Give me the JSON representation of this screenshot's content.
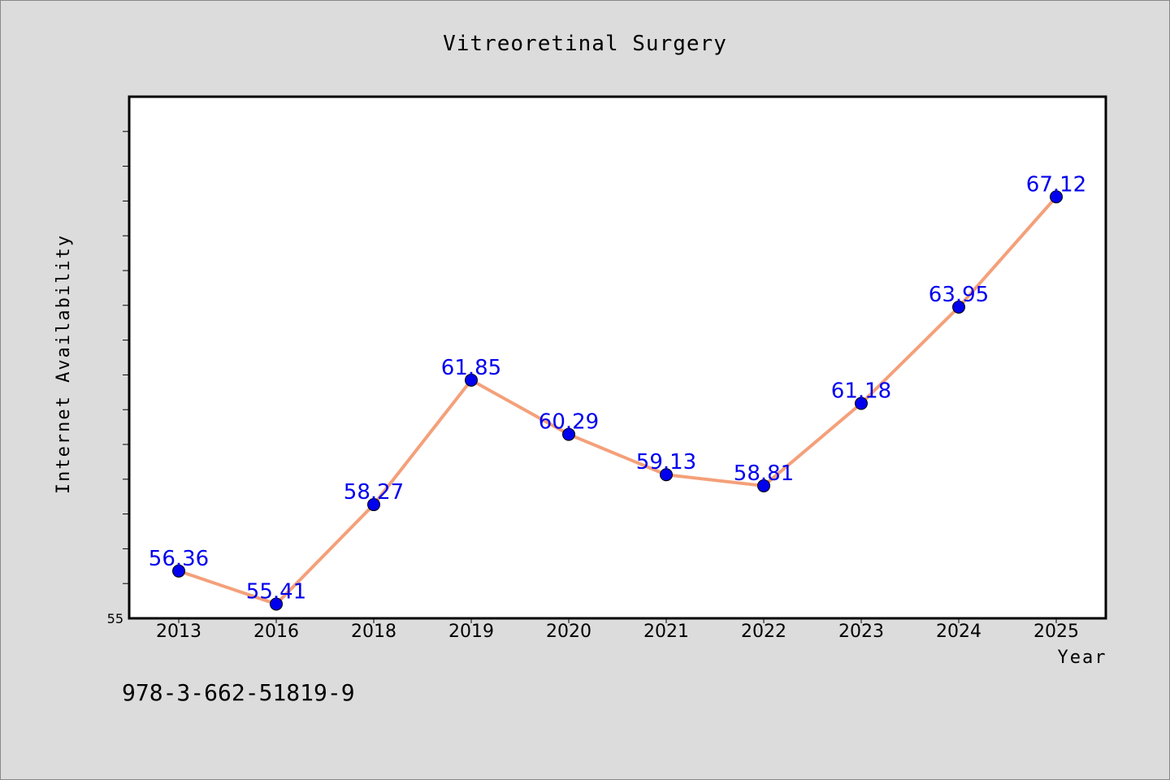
{
  "chart_data": {
    "type": "line",
    "title": "Vitreoretinal Surgery",
    "xlabel": "Year",
    "ylabel": "Internet Availability",
    "categories": [
      "2013",
      "2016",
      "2018",
      "2019",
      "2020",
      "2021",
      "2022",
      "2023",
      "2024",
      "2025"
    ],
    "values": [
      56.36,
      55.41,
      58.27,
      61.85,
      60.29,
      59.13,
      58.81,
      61.18,
      63.95,
      67.12
    ],
    "value_labels": [
      "56.36",
      "55.41",
      "58.27",
      "61.85",
      "60.29",
      "59.13",
      "58.81",
      "61.18",
      "63.95",
      "67.12"
    ],
    "ylim": [
      55,
      70
    ],
    "y_tick_labels": [
      "55"
    ],
    "grid": false,
    "colors": {
      "line": "#f4a07a",
      "marker": "#0000ee",
      "label": "#0000ee",
      "background": "#dcdcdc",
      "plot_background": "#ffffff"
    }
  },
  "footer_text": "978-3-662-51819-9"
}
